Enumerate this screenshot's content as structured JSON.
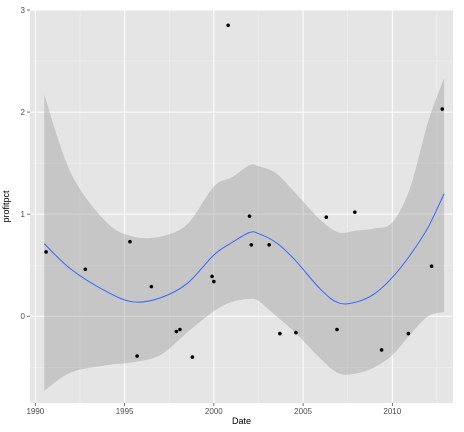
{
  "chart_data": {
    "type": "scatter",
    "xlabel": "Date",
    "ylabel": "profitpct",
    "xlim": [
      1989.7,
      2013.4
    ],
    "ylim": [
      -0.85,
      3.0
    ],
    "x_ticks": [
      1990,
      1995,
      2000,
      2005,
      2010
    ],
    "y_ticks": [
      0,
      1,
      2,
      3
    ],
    "x_tick_labels": [
      "1990",
      "1995",
      "2000",
      "2005",
      "2010"
    ],
    "y_tick_labels": [
      "0",
      "1",
      "2",
      "3"
    ],
    "grid": true,
    "points": [
      {
        "x": 1990.6,
        "y": 0.63
      },
      {
        "x": 1992.8,
        "y": 0.46
      },
      {
        "x": 1995.3,
        "y": 0.73
      },
      {
        "x": 1995.7,
        "y": -0.39
      },
      {
        "x": 1996.5,
        "y": 0.29
      },
      {
        "x": 1997.9,
        "y": -0.15
      },
      {
        "x": 1998.1,
        "y": -0.13
      },
      {
        "x": 1998.8,
        "y": -0.4
      },
      {
        "x": 1999.9,
        "y": 0.39
      },
      {
        "x": 2000.0,
        "y": 0.34
      },
      {
        "x": 2000.8,
        "y": 2.85
      },
      {
        "x": 2002.0,
        "y": 0.98
      },
      {
        "x": 2002.1,
        "y": 0.7
      },
      {
        "x": 2003.1,
        "y": 0.7
      },
      {
        "x": 2003.7,
        "y": -0.17
      },
      {
        "x": 2004.6,
        "y": -0.16
      },
      {
        "x": 2006.3,
        "y": 0.97
      },
      {
        "x": 2006.9,
        "y": -0.13
      },
      {
        "x": 2007.9,
        "y": 1.02
      },
      {
        "x": 2009.4,
        "y": -0.33
      },
      {
        "x": 2010.9,
        "y": -0.17
      },
      {
        "x": 2012.2,
        "y": 0.49
      },
      {
        "x": 2012.8,
        "y": 2.03
      }
    ],
    "smooth": {
      "method": "loess",
      "x": [
        1990.5,
        1992,
        1994,
        1995.5,
        1997,
        1998.5,
        2000,
        2001,
        2002,
        2002.5,
        2003.5,
        2004.5,
        2006,
        2007,
        2008,
        2009,
        2010,
        2011,
        2012,
        2012.9
      ],
      "y": [
        0.71,
        0.46,
        0.24,
        0.14,
        0.18,
        0.32,
        0.6,
        0.72,
        0.82,
        0.81,
        0.72,
        0.56,
        0.26,
        0.13,
        0.14,
        0.22,
        0.38,
        0.6,
        0.87,
        1.2
      ],
      "lower": [
        -0.73,
        -0.55,
        -0.48,
        -0.45,
        -0.38,
        -0.16,
        0.05,
        0.14,
        0.17,
        0.15,
        0.0,
        -0.15,
        -0.42,
        -0.56,
        -0.56,
        -0.5,
        -0.38,
        -0.18,
        0.0,
        0.04
      ],
      "upper": [
        2.17,
        1.4,
        0.92,
        0.78,
        0.78,
        0.9,
        1.27,
        1.36,
        1.48,
        1.47,
        1.4,
        1.22,
        0.94,
        0.82,
        0.84,
        0.86,
        0.92,
        1.26,
        1.9,
        2.33
      ]
    },
    "colors": {
      "panel": "#e5e5e5",
      "grid_major": "#ffffff",
      "grid_minor": "#f2f2f2",
      "band": "#999999",
      "line": "#3366ff",
      "point": "#000000",
      "tick": "#4d4d4d"
    }
  }
}
